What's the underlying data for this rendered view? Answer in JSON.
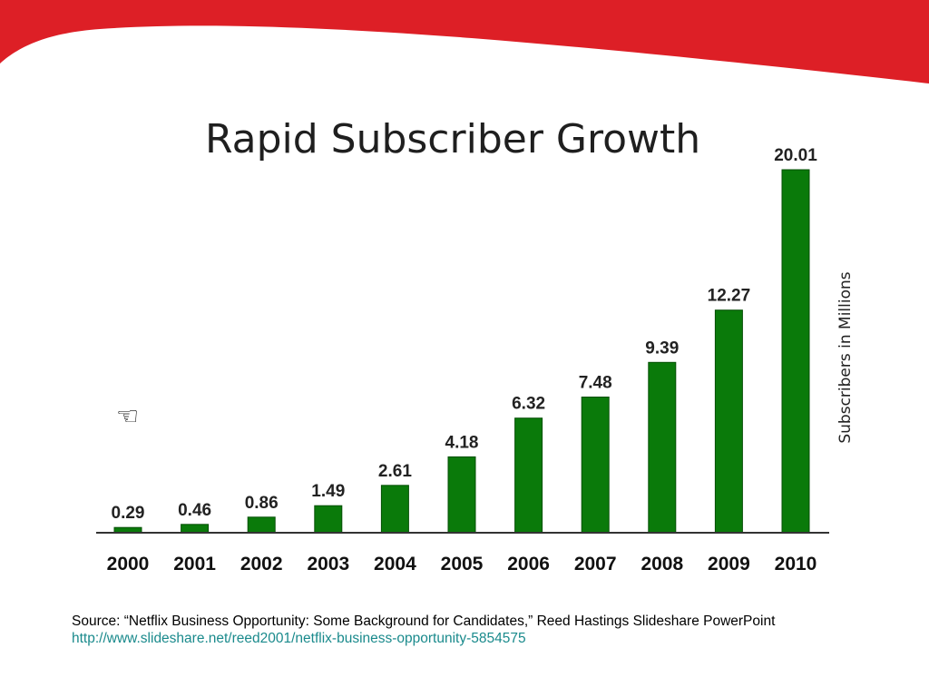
{
  "colors": {
    "banner": "#dd1f26",
    "bar": "#0a7a0a",
    "bar_stroke": "#064f06",
    "link": "#1a8a8c"
  },
  "pointer_icon": "pointing-hand-icon",
  "pointer_glyph": "☜",
  "chart_data": {
    "type": "bar",
    "title": "Rapid Subscriber Growth",
    "xlabel": "",
    "ylabel": "Subscribers in Millions",
    "categories": [
      "2000",
      "2001",
      "2002",
      "2003",
      "2004",
      "2005",
      "2006",
      "2007",
      "2008",
      "2009",
      "2010"
    ],
    "values": [
      0.29,
      0.46,
      0.86,
      1.49,
      2.61,
      4.18,
      6.32,
      7.48,
      9.39,
      12.27,
      20.01
    ],
    "value_labels": [
      "0.29",
      "0.46",
      "0.86",
      "1.49",
      "2.61",
      "4.18",
      "6.32",
      "7.48",
      "9.39",
      "12.27",
      "20.01"
    ],
    "ylim": [
      0,
      20.01
    ],
    "grid": false,
    "legend": "none"
  },
  "source": {
    "text": "Source: “Netflix Business Opportunity: Some Background for Candidates,” Reed Hastings Slideshare PowerPoint",
    "url": "http://www.slideshare.net/reed2001/netflix-business-opportunity-5854575"
  }
}
